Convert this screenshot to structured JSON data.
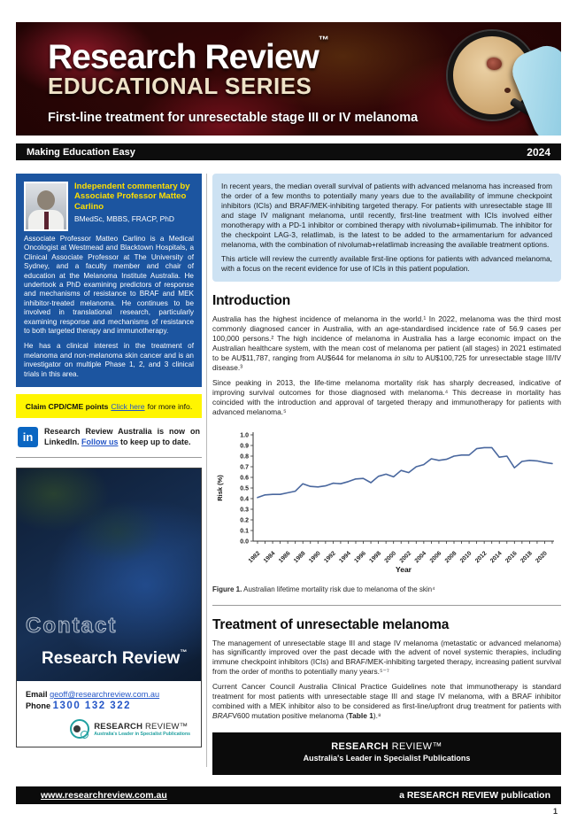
{
  "header": {
    "brand": "Research Review",
    "brand_tm": "™",
    "series": "EDUCATIONAL SERIES",
    "edition_title": "First-line treatment for unresectable stage III or IV melanoma",
    "tagline": "Making Education Easy",
    "year": "2024"
  },
  "sidebar": {
    "commentary_heading": "Independent commentary by Associate Professor Matteo Carlino",
    "credentials": "BMedSc, MBBS, FRACP, PhD",
    "bio_p1": "Associate Professor Matteo Carlino is a Medical Oncologist at Westmead and Blacktown Hospitals, a Clinical Associate Professor at The University of Sydney, and a faculty member and chair of education at the Melanoma Institute Australia. He undertook a PhD examining predictors of response and mechanisms of resistance to BRAF and MEK inhibitor-treated melanoma. He continues to be involved in translational research, particularly examining response and mechanisms of resistance to both targeted therapy and immunotherapy.",
    "bio_p2": "He has a clinical interest in the treatment of melanoma and non-melanoma skin cancer and is an investigator on multiple Phase 1, 2, and 3 clinical trials in this area.",
    "cpd_prefix": "Claim CPD/CME points",
    "cpd_link": "Click here",
    "cpd_suffix": "for more info.",
    "linkedin_text": "Research Review Australia is now on LinkedIn. ",
    "linkedin_link": "Follow us",
    "linkedin_suffix": " to keep up to date.",
    "linkedin_icon_glyph": "in",
    "contact_watermark": "Contact",
    "contact_brand": "Research Review",
    "contact_brand_tm": "™",
    "email_label": "Email",
    "email_value": "geoff@researchreview.com.au",
    "phone_label": "Phone",
    "phone_value": "1300 132 322",
    "logo_bold": "RESEARCH",
    "logo_light": " REVIEW™",
    "logo_tagline": "Australia's Leader in Specialist Publications"
  },
  "main": {
    "intro_box": {
      "p1": "In recent years, the median overall survival of patients with advanced melanoma has increased from the order of a few months to potentially many years due to the availability of immune checkpoint inhibitors (ICIs) and BRAF/MEK-inhibiting targeted therapy. For patients with unresectable stage III and stage IV malignant melanoma, until recently, first-line treatment with ICIs involved either monotherapy with a PD-1 inhibitor or combined therapy with nivolumab+ipilimumab. The inhibitor for the checkpoint LAG-3, relatlimab, is the latest to be added to the armamentarium for advanced melanoma, with the combination of nivolumab+relatlimab increasing the available treatment options.",
      "p2": "This article will review the currently available first-line options for patients with advanced melanoma, with a focus on the recent evidence for use of ICIs in this patient population."
    },
    "introduction": {
      "heading": "Introduction",
      "p1_a": "Australia has the highest incidence of melanoma in the world.¹ In 2022, melanoma was the third most commonly diagnosed cancer in Australia, with an age-standardised incidence rate of 56.9 cases per 100,000 persons.² The high incidence of melanoma in Australia has a large economic impact on the Australian healthcare system, with the mean cost of melanoma per patient (all stages) in 2021 estimated to be AU$11,787, ranging from AU$644 for melanoma ",
      "p1_italic": "in situ",
      "p1_b": " to AU$100,725 for unresectable stage III/IV disease.³",
      "p2": "Since peaking in 2013, the life-time melanoma mortality risk has sharply decreased, indicative of improving survival outcomes for those diagnosed with melanoma.⁴ This decrease in mortality has coincided with the introduction and approval of targeted therapy and immunotherapy for patients with advanced melanoma.⁵"
    },
    "figure": {
      "label": "Figure 1.",
      "caption": " Australian lifetime mortality risk due to melanoma of the skin⁴"
    },
    "treatment": {
      "heading": "Treatment of unresectable melanoma",
      "p1": "The management of unresectable stage III and stage IV melanoma (metastatic or advanced melanoma) has significantly improved over the past decade with the advent of novel systemic therapies, including immune checkpoint inhibitors (ICIs) and BRAF/MEK-inhibiting targeted therapy, increasing patient survival from the order of months to potentially many years.⁵⁻⁷",
      "p2_a": "Current Cancer Council Australia Clinical Practice Guidelines note that immunotherapy is standard treatment for most patients with unresectable stage III and stage IV melanoma, with a BRAF inhibitor combined with a MEK inhibitor also to be considered as first-line/upfront drug treatment for patients with ",
      "p2_italic": "BRAF",
      "p2_b": "V600 mutation positive melanoma (",
      "p2_bold": "Table 1",
      "p2_c": ").⁸"
    },
    "brand_box": {
      "bold": "RESEARCH",
      "light": " REVIEW™",
      "tagline": "Australia's Leader in Specialist Publications"
    }
  },
  "chart_data": {
    "type": "line",
    "title": "",
    "xlabel": "Year",
    "ylabel": "Risk (%)",
    "ylim": [
      0.0,
      1.0
    ],
    "ytick_step": 0.1,
    "x": [
      1982,
      1983,
      1984,
      1985,
      1986,
      1987,
      1988,
      1989,
      1990,
      1991,
      1992,
      1993,
      1994,
      1995,
      1996,
      1997,
      1998,
      1999,
      2000,
      2001,
      2002,
      2003,
      2004,
      2005,
      2006,
      2007,
      2008,
      2009,
      2010,
      2011,
      2012,
      2013,
      2014,
      2015,
      2016,
      2017,
      2018,
      2019,
      2020,
      2021
    ],
    "y": [
      0.41,
      0.435,
      0.44,
      0.44,
      0.455,
      0.47,
      0.54,
      0.515,
      0.51,
      0.52,
      0.545,
      0.54,
      0.56,
      0.585,
      0.59,
      0.55,
      0.61,
      0.63,
      0.605,
      0.665,
      0.645,
      0.7,
      0.72,
      0.775,
      0.76,
      0.77,
      0.8,
      0.81,
      0.81,
      0.87,
      0.88,
      0.88,
      0.79,
      0.8,
      0.69,
      0.75,
      0.76,
      0.755,
      0.74,
      0.73
    ],
    "x_label_every": 2,
    "grid": false,
    "legend": null,
    "line_color": "#49679e"
  },
  "footer": {
    "url": "www.researchreview.com.au",
    "publication": "a RESEARCH REVIEW publication"
  },
  "page": {
    "number": "1"
  },
  "colors": {
    "commentary_blue": "#1c55a0",
    "heading_yellow": "#ffdf00",
    "highlight_yellow": "#fff500",
    "link_blue": "#2456c7",
    "linkedin_blue": "#0a66c2",
    "intro_box_bg": "#cde2f3",
    "logo_teal": "#21a0a0",
    "chart_line": "#49679e",
    "bar_black": "#0d0d0d"
  }
}
